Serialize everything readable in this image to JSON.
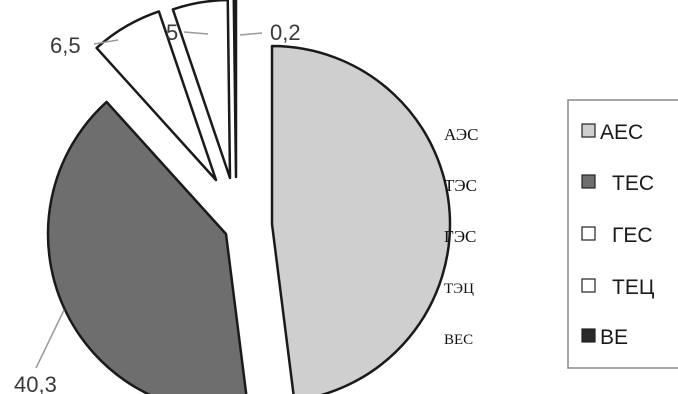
{
  "chart_data": {
    "type": "pie",
    "categories": [
      "АЕС",
      "ТЕС",
      "ГЕС",
      "ТЕЦ",
      "ВЕ"
    ],
    "values": [
      48,
      40.3,
      6.5,
      5,
      0.2
    ],
    "data_labels": [
      "",
      "40,3",
      "6,5",
      "5",
      "0,2"
    ],
    "colors": [
      "#cfcfcf",
      "#6e6e6e",
      "#ffffff",
      "#ffffff",
      "#2a2a2a"
    ],
    "exploded": true,
    "side_labels": [
      "АЭС",
      "ТЭС",
      "ГЭС",
      "ТЭЦ",
      "ВЕС"
    ],
    "legend": {
      "position": "right",
      "entries": [
        "АЕС",
        "ТЕС",
        "ГЕС",
        "ТЕЦ",
        "ВЕ"
      ]
    }
  }
}
